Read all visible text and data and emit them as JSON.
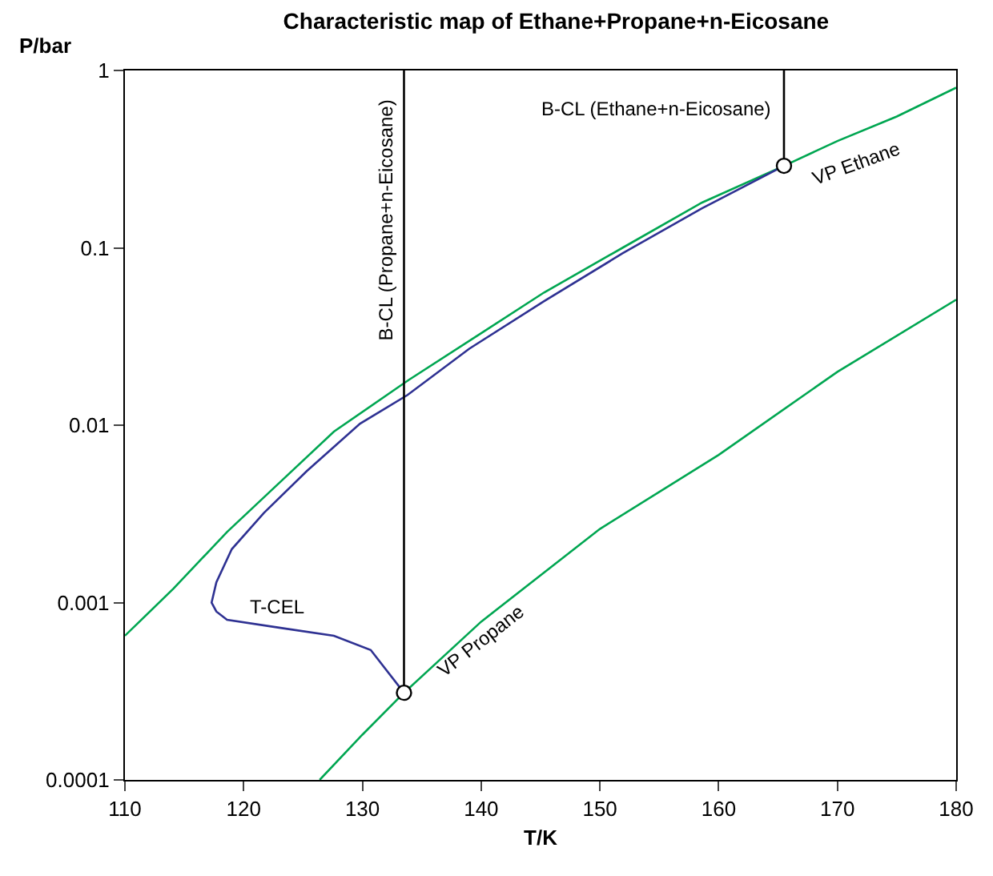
{
  "chart_data": {
    "type": "line",
    "title": "Characteristic map of Ethane+Propane+n-Eicosane",
    "xlabel": "T/K",
    "ylabel": "P/bar",
    "series": [
      {
        "name": "VP Ethane",
        "color": "#00a651",
        "x": [
          110,
          114.1,
          118.6,
          123.1,
          127.6,
          133.9,
          140,
          145.3,
          151.9,
          158.6,
          165.5,
          170,
          175,
          180
        ],
        "values": [
          0.00065,
          0.0012,
          0.0025,
          0.0048,
          0.0092,
          0.018,
          0.033,
          0.056,
          0.1,
          0.18,
          0.29,
          0.4,
          0.55,
          0.8
        ]
      },
      {
        "name": "VP Propane",
        "color": "#00a651",
        "x": [
          126.4,
          130,
          133.5,
          140,
          150,
          160,
          170,
          180
        ],
        "values": [
          0.0001,
          0.00018,
          0.00031,
          0.00078,
          0.0026,
          0.0068,
          0.02,
          0.051
        ]
      },
      {
        "name": "T-CEL",
        "color": "#2e3192",
        "x": [
          133.5,
          130.7,
          127.6,
          123.1,
          118.6,
          117.7,
          117.3,
          117.7,
          119.0,
          121.7,
          125.3,
          129.8,
          133.8,
          139.0,
          145.3,
          151.9,
          158.6,
          165.5
        ],
        "values": [
          0.00031,
          0.00054,
          0.00065,
          0.00072,
          0.0008,
          0.00089,
          0.001,
          0.0013,
          0.002,
          0.0032,
          0.0055,
          0.0102,
          0.0148,
          0.027,
          0.05,
          0.093,
          0.167,
          0.29
        ]
      },
      {
        "color": "#000000",
        "x": [
          133.5,
          133.5
        ],
        "values": [
          0.00031,
          1
        ]
      },
      {
        "color": "#000000",
        "x": [
          165.5,
          165.5
        ],
        "values": [
          0.29,
          1
        ]
      },
      {
        "type": "scatter",
        "marker": "circle",
        "color": "#000000",
        "x": [
          133.5,
          165.5
        ],
        "values": [
          0.00031,
          0.29
        ]
      }
    ],
    "annotations": [
      "B-CL (Propane+n-Eicosane)",
      "B-CL (Ethane+n-Eicosane)"
    ],
    "xlim": [
      110,
      180
    ],
    "xticks": [
      110,
      120,
      130,
      140,
      150,
      160,
      170,
      180
    ],
    "ylim": [
      0.0001,
      1
    ],
    "yticks": [
      0.0001,
      0.001,
      0.01,
      0.1,
      1
    ],
    "log": "y",
    "legend": false
  }
}
